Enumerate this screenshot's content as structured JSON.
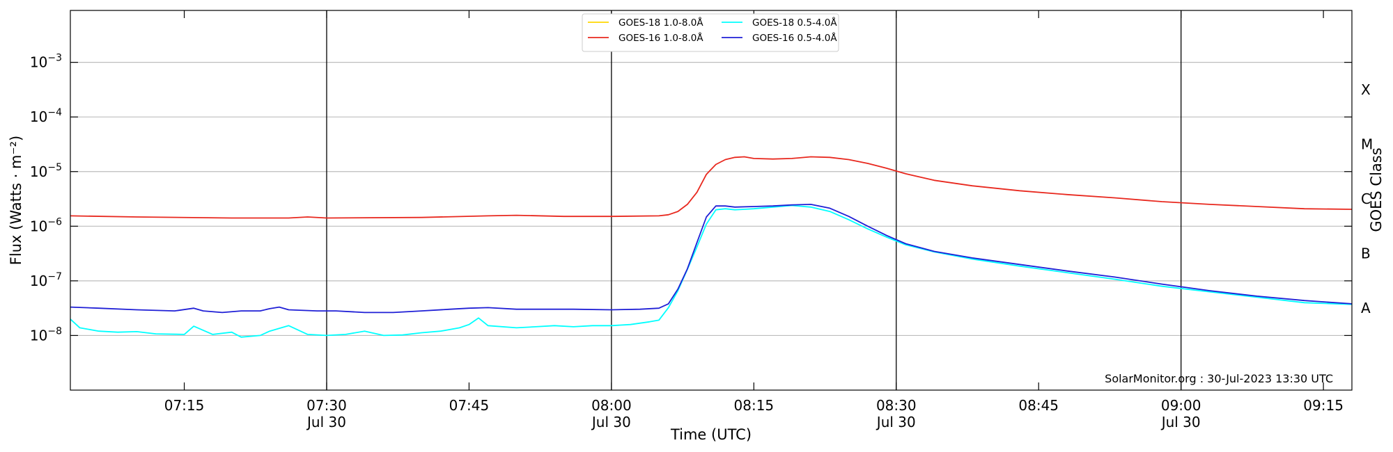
{
  "chart_data": {
    "type": "line",
    "xlabel": "Time (UTC)",
    "ylabel": "Flux (Watts · m⁻²)",
    "right_label": "GOES Class",
    "credit": "SolarMonitor.org : 30-Jul-2023 13:30 UTC",
    "xlim": [
      3,
      138
    ],
    "x_unit_note": "minutes after 07:00 UTC, Jul 30 2023",
    "y_scale": "log",
    "ylim_exp": [
      -9.0,
      -2.05
    ],
    "grid": "horizontal",
    "legend_position": "top-center",
    "x_ticks": [
      {
        "value": 15,
        "label": "07:15",
        "sub": ""
      },
      {
        "value": 30,
        "label": "07:30",
        "sub": "Jul 30"
      },
      {
        "value": 45,
        "label": "07:45",
        "sub": ""
      },
      {
        "value": 60,
        "label": "08:00",
        "sub": "Jul 30"
      },
      {
        "value": 75,
        "label": "08:15",
        "sub": ""
      },
      {
        "value": 90,
        "label": "08:30",
        "sub": "Jul 30"
      },
      {
        "value": 105,
        "label": "08:45",
        "sub": ""
      },
      {
        "value": 120,
        "label": "09:00",
        "sub": "Jul 30"
      },
      {
        "value": 135,
        "label": "09:15",
        "sub": ""
      }
    ],
    "y_ticks": [
      {
        "exp": -8,
        "label_base": "10",
        "label_exp": "−8"
      },
      {
        "exp": -7,
        "label_base": "10",
        "label_exp": "−7"
      },
      {
        "exp": -6,
        "label_base": "10",
        "label_exp": "−6"
      },
      {
        "exp": -5,
        "label_base": "10",
        "label_exp": "−5"
      },
      {
        "exp": -4,
        "label_base": "10",
        "label_exp": "−4"
      },
      {
        "exp": -3,
        "label_base": "10",
        "label_exp": "−3"
      }
    ],
    "vertical_lines": [
      30,
      60,
      90,
      120
    ],
    "goes_classes": [
      {
        "label": "A",
        "exp": -7.5
      },
      {
        "label": "B",
        "exp": -6.5
      },
      {
        "label": "C",
        "exp": -5.5
      },
      {
        "label": "M",
        "exp": -4.5
      },
      {
        "label": "X",
        "exp": -3.5
      }
    ],
    "series": [
      {
        "name": "GOES-18 1.0-8.0Å",
        "color": "#ffd700",
        "points": []
      },
      {
        "name": "GOES-16 1.0-8.0Å",
        "color": "#e8281e",
        "points": [
          [
            3,
            -5.81
          ],
          [
            10,
            -5.83
          ],
          [
            20,
            -5.85
          ],
          [
            26,
            -5.85
          ],
          [
            28,
            -5.83
          ],
          [
            30,
            -5.85
          ],
          [
            40,
            -5.84
          ],
          [
            47,
            -5.81
          ],
          [
            50,
            -5.8
          ],
          [
            55,
            -5.82
          ],
          [
            60,
            -5.82
          ],
          [
            65,
            -5.81
          ],
          [
            66,
            -5.79
          ],
          [
            67,
            -5.73
          ],
          [
            68,
            -5.6
          ],
          [
            69,
            -5.38
          ],
          [
            70,
            -5.05
          ],
          [
            71,
            -4.87
          ],
          [
            72,
            -4.78
          ],
          [
            73,
            -4.74
          ],
          [
            74,
            -4.73
          ],
          [
            75,
            -4.76
          ],
          [
            77,
            -4.77
          ],
          [
            79,
            -4.76
          ],
          [
            81,
            -4.73
          ],
          [
            83,
            -4.74
          ],
          [
            85,
            -4.78
          ],
          [
            87,
            -4.85
          ],
          [
            89,
            -4.94
          ],
          [
            91,
            -5.04
          ],
          [
            94,
            -5.16
          ],
          [
            98,
            -5.26
          ],
          [
            103,
            -5.35
          ],
          [
            108,
            -5.42
          ],
          [
            113,
            -5.48
          ],
          [
            118,
            -5.55
          ],
          [
            123,
            -5.6
          ],
          [
            128,
            -5.64
          ],
          [
            133,
            -5.68
          ],
          [
            138,
            -5.69
          ]
        ]
      },
      {
        "name": "GOES-18 0.5-4.0Å",
        "color": "#00ffff",
        "points": [
          [
            3,
            -7.7
          ],
          [
            4,
            -7.86
          ],
          [
            6,
            -7.92
          ],
          [
            8,
            -7.94
          ],
          [
            10,
            -7.93
          ],
          [
            12,
            -7.97
          ],
          [
            15,
            -7.98
          ],
          [
            16,
            -7.83
          ],
          [
            18,
            -7.98
          ],
          [
            20,
            -7.94
          ],
          [
            21,
            -8.03
          ],
          [
            23,
            -8.0
          ],
          [
            24,
            -7.92
          ],
          [
            26,
            -7.82
          ],
          [
            28,
            -7.98
          ],
          [
            30,
            -8.0
          ],
          [
            32,
            -7.98
          ],
          [
            34,
            -7.92
          ],
          [
            36,
            -8.0
          ],
          [
            38,
            -7.99
          ],
          [
            40,
            -7.95
          ],
          [
            42,
            -7.92
          ],
          [
            44,
            -7.86
          ],
          [
            45,
            -7.8
          ],
          [
            46,
            -7.68
          ],
          [
            47,
            -7.82
          ],
          [
            50,
            -7.86
          ],
          [
            52,
            -7.84
          ],
          [
            54,
            -7.82
          ],
          [
            56,
            -7.84
          ],
          [
            58,
            -7.82
          ],
          [
            60,
            -7.82
          ],
          [
            62,
            -7.8
          ],
          [
            64,
            -7.75
          ],
          [
            65,
            -7.72
          ],
          [
            66,
            -7.49
          ],
          [
            67,
            -7.18
          ],
          [
            68,
            -6.79
          ],
          [
            69,
            -6.38
          ],
          [
            70,
            -5.96
          ],
          [
            71,
            -5.7
          ],
          [
            72,
            -5.68
          ],
          [
            73,
            -5.7
          ],
          [
            74,
            -5.69
          ],
          [
            75,
            -5.68
          ],
          [
            77,
            -5.65
          ],
          [
            79,
            -5.62
          ],
          [
            81,
            -5.65
          ],
          [
            83,
            -5.73
          ],
          [
            85,
            -5.88
          ],
          [
            87,
            -6.05
          ],
          [
            89,
            -6.2
          ],
          [
            91,
            -6.34
          ],
          [
            94,
            -6.47
          ],
          [
            98,
            -6.6
          ],
          [
            103,
            -6.73
          ],
          [
            108,
            -6.85
          ],
          [
            113,
            -6.97
          ],
          [
            118,
            -7.1
          ],
          [
            123,
            -7.2
          ],
          [
            128,
            -7.3
          ],
          [
            133,
            -7.4
          ],
          [
            138,
            -7.43
          ]
        ]
      },
      {
        "name": "GOES-16 0.5-4.0Å",
        "color": "#1f1fd6",
        "points": [
          [
            3,
            -7.48
          ],
          [
            6,
            -7.5
          ],
          [
            10,
            -7.53
          ],
          [
            14,
            -7.55
          ],
          [
            16,
            -7.5
          ],
          [
            17,
            -7.55
          ],
          [
            19,
            -7.58
          ],
          [
            21,
            -7.55
          ],
          [
            23,
            -7.55
          ],
          [
            24,
            -7.51
          ],
          [
            25,
            -7.48
          ],
          [
            26,
            -7.53
          ],
          [
            29,
            -7.55
          ],
          [
            31,
            -7.55
          ],
          [
            34,
            -7.58
          ],
          [
            37,
            -7.58
          ],
          [
            40,
            -7.55
          ],
          [
            43,
            -7.52
          ],
          [
            45,
            -7.5
          ],
          [
            47,
            -7.49
          ],
          [
            50,
            -7.52
          ],
          [
            53,
            -7.52
          ],
          [
            56,
            -7.52
          ],
          [
            60,
            -7.53
          ],
          [
            63,
            -7.52
          ],
          [
            65,
            -7.5
          ],
          [
            66,
            -7.42
          ],
          [
            67,
            -7.15
          ],
          [
            68,
            -6.78
          ],
          [
            69,
            -6.3
          ],
          [
            70,
            -5.83
          ],
          [
            71,
            -5.63
          ],
          [
            72,
            -5.63
          ],
          [
            73,
            -5.65
          ],
          [
            75,
            -5.64
          ],
          [
            77,
            -5.63
          ],
          [
            79,
            -5.61
          ],
          [
            81,
            -5.6
          ],
          [
            83,
            -5.67
          ],
          [
            85,
            -5.82
          ],
          [
            87,
            -6.0
          ],
          [
            89,
            -6.17
          ],
          [
            91,
            -6.32
          ],
          [
            94,
            -6.46
          ],
          [
            98,
            -6.58
          ],
          [
            103,
            -6.7
          ],
          [
            108,
            -6.82
          ],
          [
            113,
            -6.93
          ],
          [
            118,
            -7.06
          ],
          [
            123,
            -7.18
          ],
          [
            128,
            -7.28
          ],
          [
            133,
            -7.36
          ],
          [
            138,
            -7.42
          ]
        ]
      }
    ]
  }
}
